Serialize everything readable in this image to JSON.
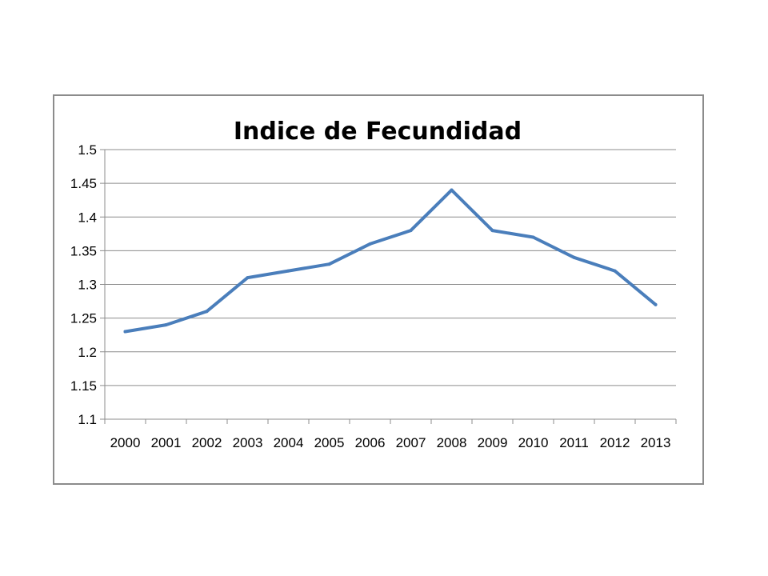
{
  "chart_data": {
    "type": "line",
    "title": "Indice de Fecundidad",
    "xlabel": "",
    "ylabel": "",
    "categories": [
      "2000",
      "2001",
      "2002",
      "2003",
      "2004",
      "2005",
      "2006",
      "2007",
      "2008",
      "2009",
      "2010",
      "2011",
      "2012",
      "2013"
    ],
    "series": [
      {
        "values": [
          1.23,
          1.24,
          1.26,
          1.31,
          1.32,
          1.33,
          1.36,
          1.38,
          1.44,
          1.38,
          1.37,
          1.34,
          1.32,
          1.27
        ],
        "color": "#4a7ebb"
      }
    ],
    "ylim": [
      1.1,
      1.5
    ],
    "yticks": [
      "1.1",
      "1.15",
      "1.2",
      "1.25",
      "1.3",
      "1.35",
      "1.4",
      "1.45",
      "1.5"
    ],
    "grid": true,
    "legend": "none",
    "colors": {
      "gridline": "#8c8c8c",
      "axis": "#8c8c8c",
      "frame": "#8c8c8c"
    }
  }
}
